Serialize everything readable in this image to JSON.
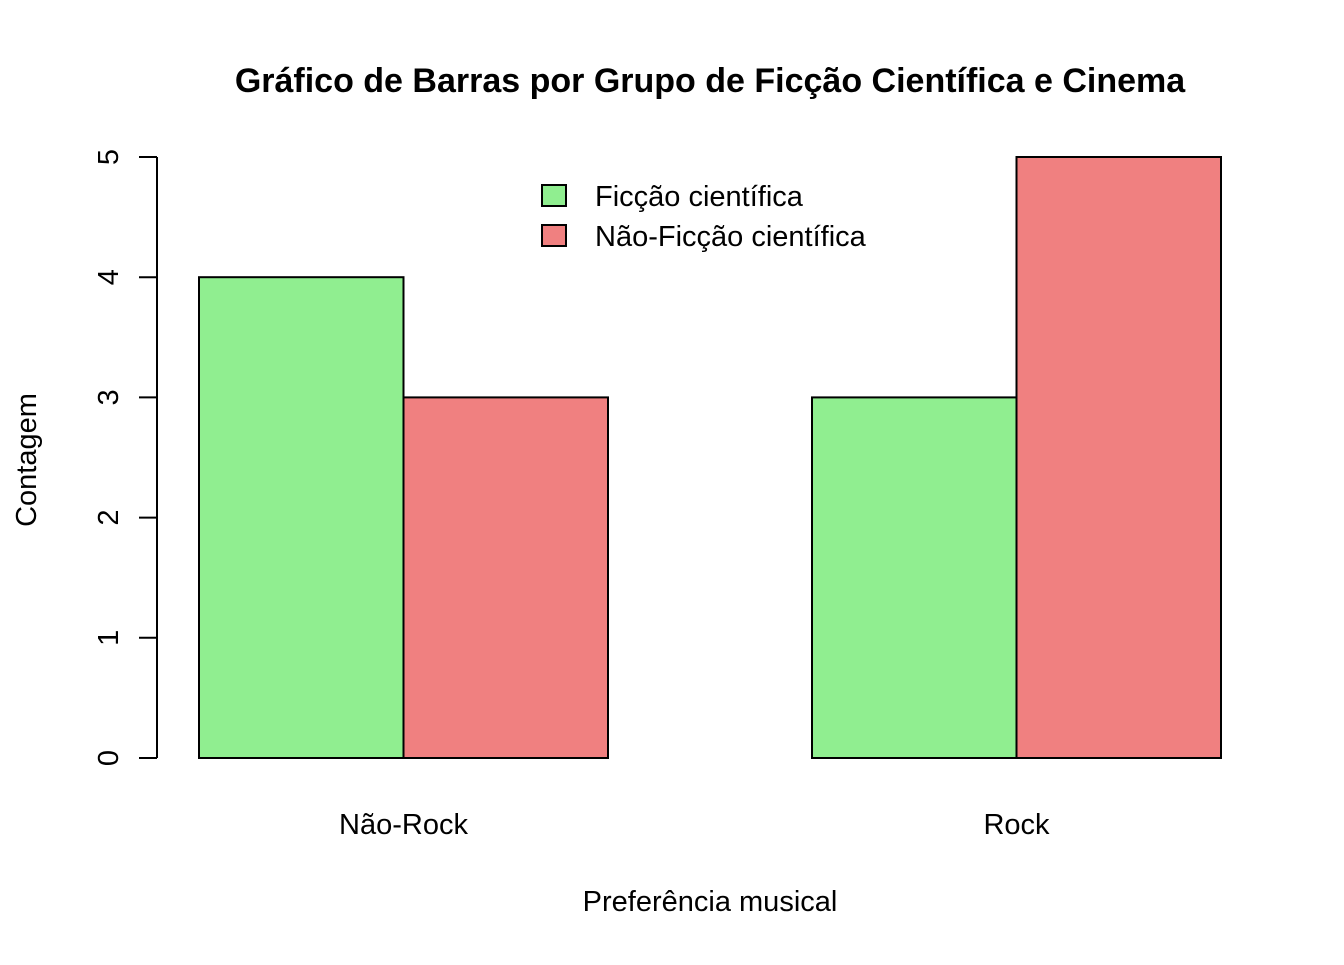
{
  "chart_data": {
    "type": "bar",
    "title": "Gráfico de Barras por Grupo de Ficção Científica e Cinema",
    "xlabel": "Preferência musical",
    "ylabel": "Contagem",
    "categories": [
      "Não-Rock",
      "Rock"
    ],
    "series": [
      {
        "name": "Ficção científica",
        "values": [
          4,
          3
        ],
        "color": "#90EE90"
      },
      {
        "name": "Não-Ficção científica",
        "values": [
          3,
          5
        ],
        "color": "#F08080"
      }
    ],
    "ylim": [
      0,
      5
    ],
    "yticks": [
      "0",
      "1",
      "2",
      "3",
      "4",
      "5"
    ],
    "grid": false,
    "legend_position": "top-center"
  }
}
